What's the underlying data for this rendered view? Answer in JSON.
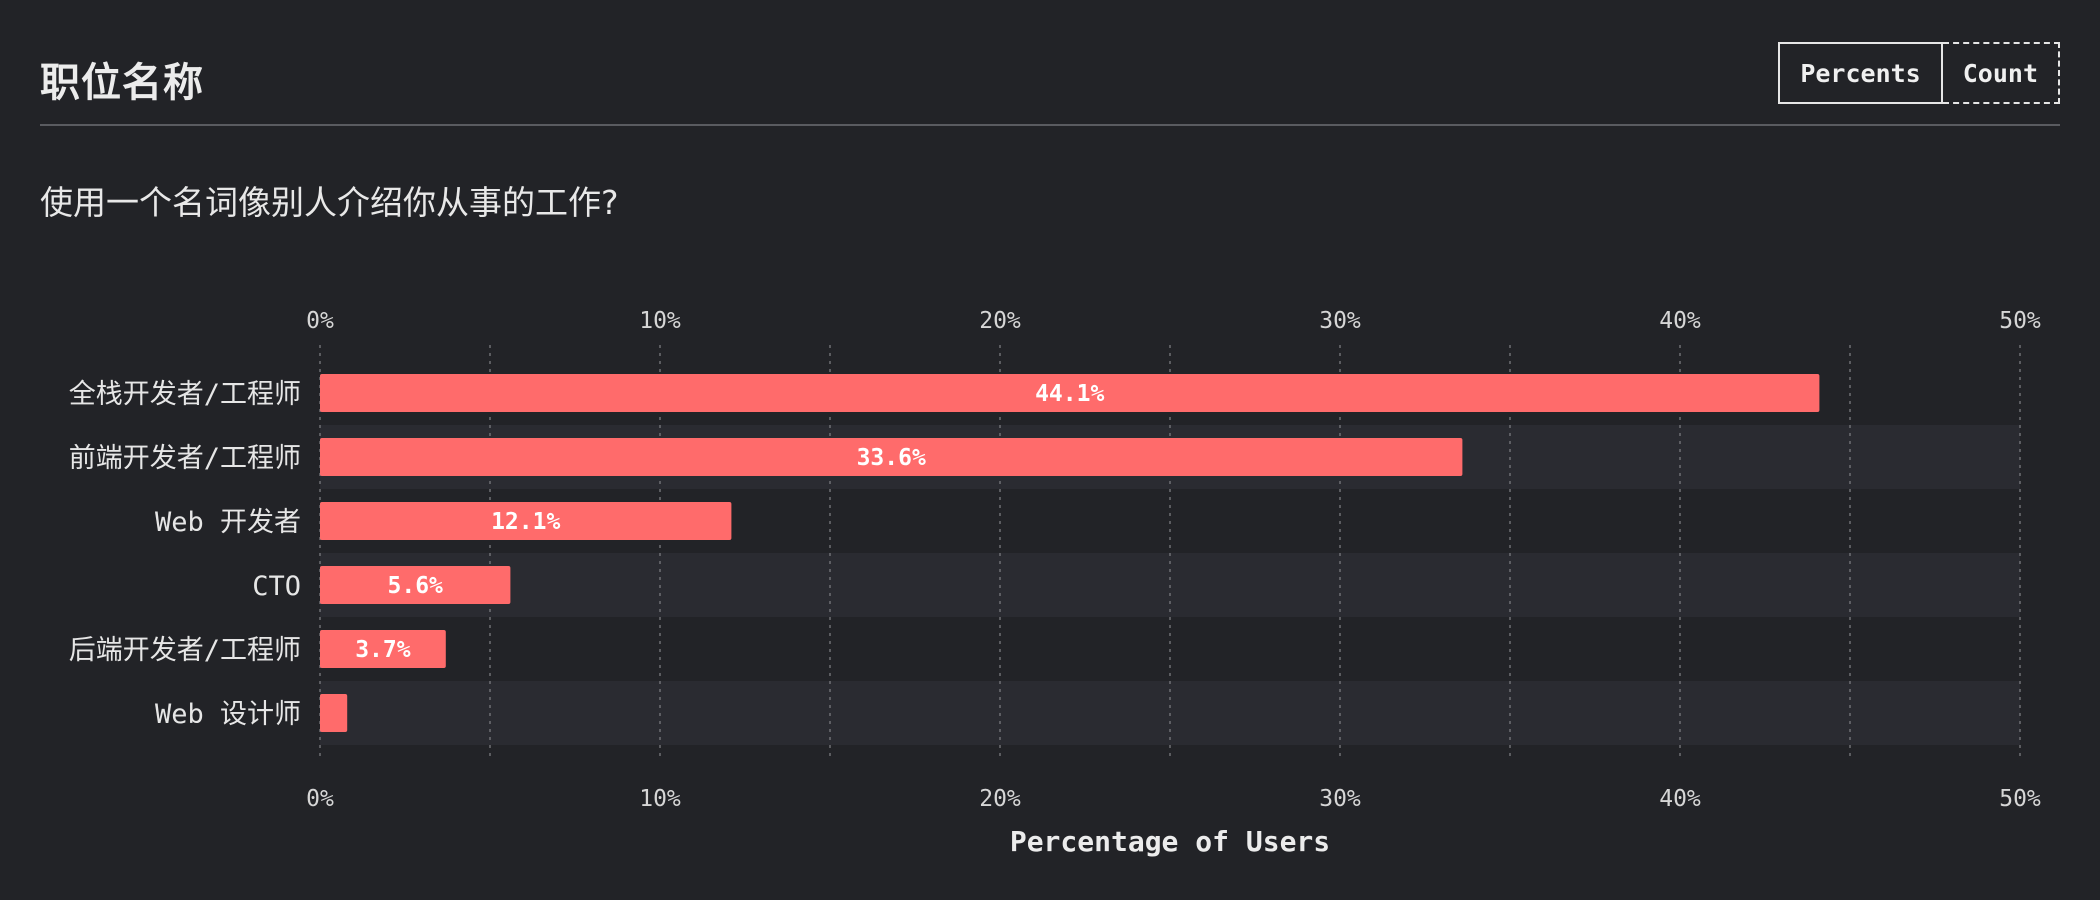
{
  "header": {
    "title": "职位名称",
    "toggle": {
      "percents_label": "Percents",
      "count_label": "Count",
      "selected": "Percents"
    }
  },
  "question": "使用一个名词像别人介绍你从事的工作?",
  "colors": {
    "background": "#222327",
    "bar": "#ff6b6b",
    "band": "#2a2b31",
    "grid": "#6e6f74"
  },
  "chart_data": {
    "type": "bar",
    "orientation": "horizontal",
    "categories": [
      "全栈开发者/工程师",
      "前端开发者/工程师",
      "Web 开发者",
      "CTO",
      "后端开发者/工程师",
      "Web 设计师"
    ],
    "values": [
      44.1,
      33.6,
      12.1,
      5.6,
      3.7,
      0.8
    ],
    "value_labels": [
      "44.1%",
      "33.6%",
      "12.1%",
      "5.6%",
      "3.7%",
      ""
    ],
    "xlim": [
      0,
      50
    ],
    "x_ticks": [
      0,
      10,
      20,
      30,
      40,
      50
    ],
    "x_tick_labels": [
      "0%",
      "10%",
      "20%",
      "30%",
      "40%",
      "50%"
    ],
    "xlabel": "Percentage of Users",
    "ylabel": "",
    "grid": true,
    "title": ""
  }
}
